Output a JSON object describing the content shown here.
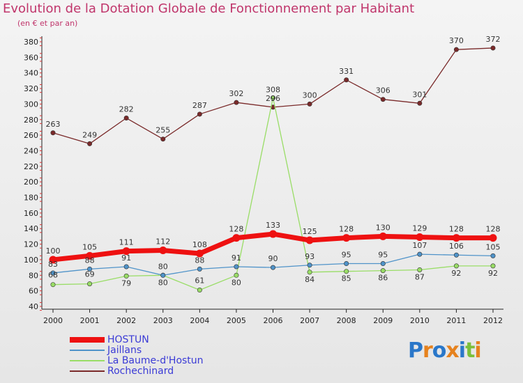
{
  "title": "Evolution de la Dotation Globale de Fonctionnement par Habitant",
  "subtitle": "(en € et par an)",
  "logo": {
    "text": "Proxiti",
    "letters": [
      "P",
      "r",
      "o",
      "x",
      "i",
      "t",
      "i"
    ],
    "colors": [
      "#2a77c9",
      "#e6821e",
      "#2a77c9",
      "#e6821e",
      "#2a77c9",
      "#7cbf3a",
      "#e6821e"
    ]
  },
  "chart_data": {
    "type": "line",
    "x": [
      "2000",
      "2001",
      "2002",
      "2003",
      "2004",
      "2005",
      "2006",
      "2007",
      "2008",
      "2009",
      "2010",
      "2011",
      "2012"
    ],
    "ylim": [
      40,
      380
    ],
    "yticks": [
      40,
      60,
      80,
      100,
      120,
      140,
      160,
      180,
      200,
      220,
      240,
      260,
      280,
      300,
      320,
      340,
      360,
      380
    ],
    "grid": false,
    "series": [
      {
        "name": "HOSTUN",
        "color": "#ee1111",
        "width": "thick",
        "values": [
          100,
          105,
          111,
          112,
          108,
          128,
          133,
          125,
          128,
          130,
          129,
          128,
          128
        ]
      },
      {
        "name": "Jaillans",
        "color": "#4f93c9",
        "width": "thin",
        "values": [
          83,
          88,
          91,
          80,
          88,
          91,
          90,
          93,
          95,
          95,
          107,
          106,
          105
        ]
      },
      {
        "name": "La Baume-d'Hostun",
        "color": "#99dd66",
        "width": "thin",
        "values": [
          68,
          69,
          79,
          80,
          61,
          80,
          308,
          84,
          85,
          86,
          87,
          92,
          92
        ]
      },
      {
        "name": "Rochechinard",
        "color": "#7a2a2a",
        "width": "thin",
        "values": [
          263,
          249,
          282,
          255,
          287,
          302,
          296,
          300,
          331,
          306,
          301,
          370,
          372
        ]
      }
    ]
  }
}
